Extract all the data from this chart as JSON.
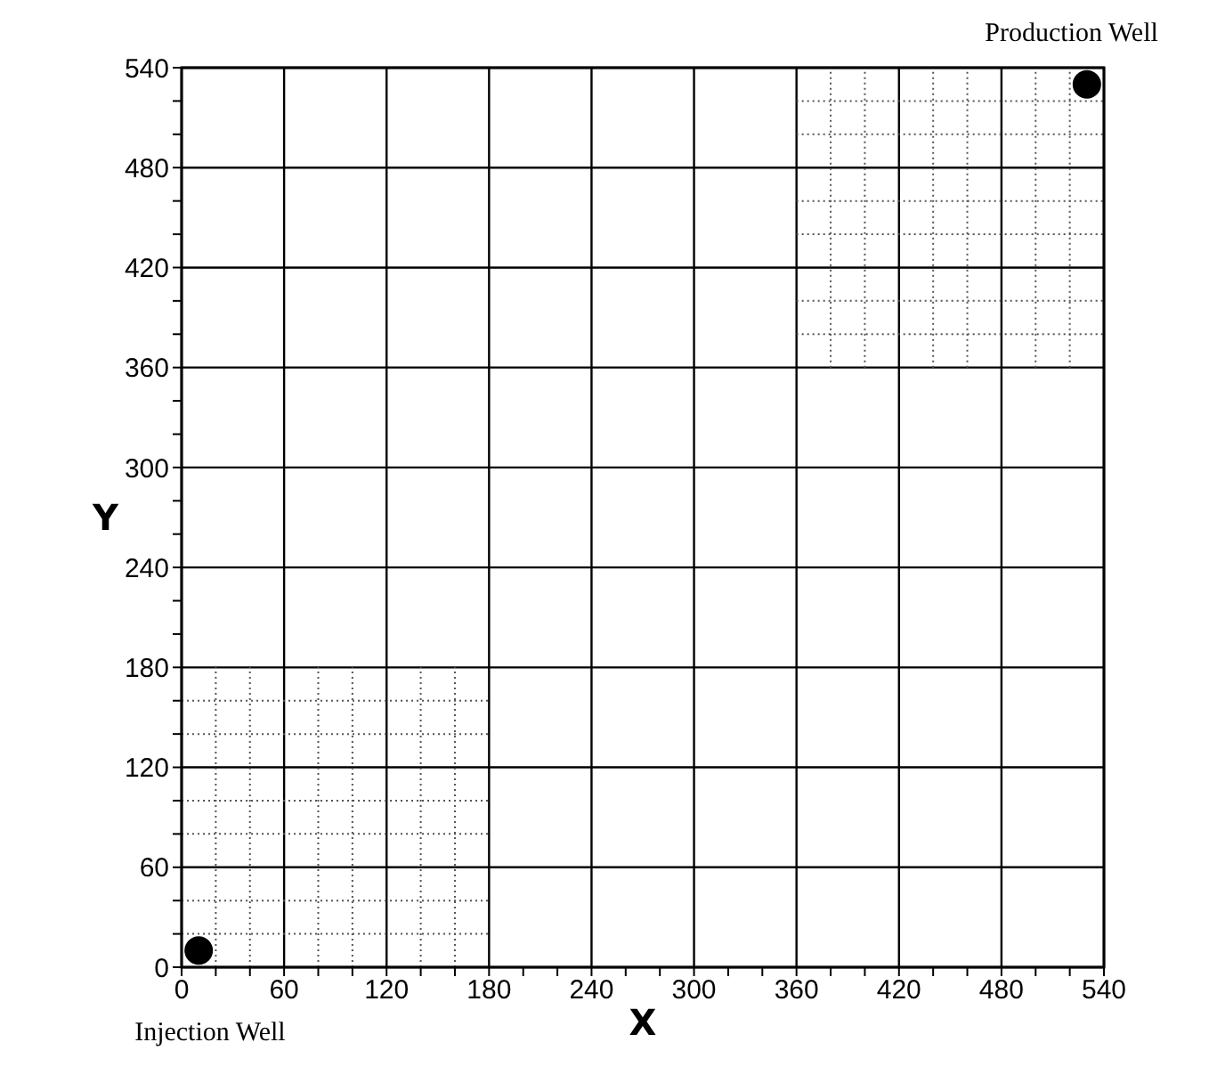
{
  "chart_data": {
    "type": "scatter",
    "xlabel": "X",
    "ylabel": "Y",
    "x": [
      10,
      530
    ],
    "series": [
      {
        "color": "#000000",
        "values": [
          10,
          530
        ],
        "marker": "circle"
      },
      {
        "type": "line",
        "color": "#555555",
        "x": [
          20,
          20
        ],
        "values": [
          0,
          180
        ]
      },
      {
        "type": "line",
        "color": "#555555",
        "x": [
          40,
          40
        ],
        "values": [
          0,
          180
        ]
      },
      {
        "type": "line",
        "color": "#555555",
        "x": [
          80,
          80
        ],
        "values": [
          0,
          180
        ]
      },
      {
        "type": "line",
        "color": "#555555",
        "x": [
          100,
          100
        ],
        "values": [
          0,
          180
        ]
      },
      {
        "type": "line",
        "color": "#555555",
        "x": [
          140,
          140
        ],
        "values": [
          0,
          180
        ]
      },
      {
        "type": "line",
        "color": "#555555",
        "x": [
          160,
          160
        ],
        "values": [
          0,
          180
        ]
      },
      {
        "type": "line",
        "color": "#555555",
        "x": [
          0,
          180
        ],
        "values": [
          20,
          20
        ]
      },
      {
        "type": "line",
        "color": "#555555",
        "x": [
          0,
          180
        ],
        "values": [
          40,
          40
        ]
      },
      {
        "type": "line",
        "color": "#555555",
        "x": [
          0,
          180
        ],
        "values": [
          80,
          80
        ]
      },
      {
        "type": "line",
        "color": "#555555",
        "x": [
          0,
          180
        ],
        "values": [
          100,
          100
        ]
      },
      {
        "type": "line",
        "color": "#555555",
        "x": [
          0,
          180
        ],
        "values": [
          140,
          140
        ]
      },
      {
        "type": "line",
        "color": "#555555",
        "x": [
          0,
          180
        ],
        "values": [
          160,
          160
        ]
      },
      {
        "type": "line",
        "color": "#555555",
        "x": [
          380,
          380
        ],
        "values": [
          360,
          540
        ]
      },
      {
        "type": "line",
        "color": "#555555",
        "x": [
          400,
          400
        ],
        "values": [
          360,
          540
        ]
      },
      {
        "type": "line",
        "color": "#555555",
        "x": [
          440,
          440
        ],
        "values": [
          360,
          540
        ]
      },
      {
        "type": "line",
        "color": "#555555",
        "x": [
          460,
          460
        ],
        "values": [
          360,
          540
        ]
      },
      {
        "type": "line",
        "color": "#555555",
        "x": [
          500,
          500
        ],
        "values": [
          360,
          540
        ]
      },
      {
        "type": "line",
        "color": "#555555",
        "x": [
          520,
          520
        ],
        "values": [
          360,
          540
        ]
      },
      {
        "type": "line",
        "color": "#555555",
        "x": [
          360,
          540
        ],
        "values": [
          380,
          380
        ]
      },
      {
        "type": "line",
        "color": "#555555",
        "x": [
          360,
          540
        ],
        "values": [
          400,
          400
        ]
      },
      {
        "type": "line",
        "color": "#555555",
        "x": [
          360,
          540
        ],
        "values": [
          440,
          440
        ]
      },
      {
        "type": "line",
        "color": "#555555",
        "x": [
          360,
          540
        ],
        "values": [
          460,
          460
        ]
      },
      {
        "type": "line",
        "color": "#555555",
        "x": [
          360,
          540
        ],
        "values": [
          500,
          500
        ]
      },
      {
        "type": "line",
        "color": "#555555",
        "x": [
          360,
          540
        ],
        "values": [
          520,
          520
        ]
      }
    ],
    "xlim": [
      0,
      540
    ],
    "ylim": [
      0,
      540
    ],
    "xticks": [
      0,
      {
        "value": 20,
        "label": null
      },
      {
        "value": 40,
        "label": null
      },
      60,
      {
        "value": 80,
        "label": null
      },
      {
        "value": 100,
        "label": null
      },
      120,
      {
        "value": 140,
        "label": null
      },
      {
        "value": 160,
        "label": null
      },
      180,
      {
        "value": 200,
        "label": null
      },
      {
        "value": 220,
        "label": null
      },
      240,
      {
        "value": 260,
        "label": null
      },
      {
        "value": 280,
        "label": null
      },
      300,
      {
        "value": 320,
        "label": null
      },
      {
        "value": 340,
        "label": null
      },
      360,
      {
        "value": 380,
        "label": null
      },
      {
        "value": 400,
        "label": null
      },
      420,
      {
        "value": 440,
        "label": null
      },
      {
        "value": 460,
        "label": null
      },
      480,
      {
        "value": 500,
        "label": null
      },
      {
        "value": 520,
        "label": null
      },
      540
    ],
    "yticks": [
      0,
      {
        "value": 20,
        "label": null
      },
      {
        "value": 40,
        "label": null
      },
      60,
      {
        "value": 80,
        "label": null
      },
      {
        "value": 100,
        "label": null
      },
      120,
      {
        "value": 140,
        "label": null
      },
      {
        "value": 160,
        "label": null
      },
      180,
      {
        "value": 200,
        "label": null
      },
      {
        "value": 220,
        "label": null
      },
      240,
      {
        "value": 260,
        "label": null
      },
      {
        "value": 280,
        "label": null
      },
      300,
      {
        "value": 320,
        "label": null
      },
      {
        "value": 340,
        "label": null
      },
      360,
      {
        "value": 380,
        "label": null
      },
      {
        "value": 400,
        "label": null
      },
      420,
      {
        "value": 440,
        "label": null
      },
      {
        "value": 460,
        "label": null
      },
      480,
      {
        "value": 500,
        "label": null
      },
      {
        "value": 520,
        "label": null
      },
      540
    ],
    "grid": true,
    "line_style": "dotted",
    "annotations": [
      {
        "text": "Injection Well",
        "x": 10,
        "y": 10
      },
      {
        "text": "Production Well",
        "x": 530,
        "y": 530
      }
    ]
  }
}
